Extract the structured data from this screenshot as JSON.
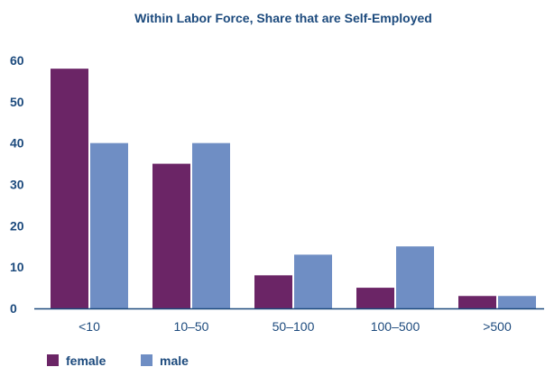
{
  "chart_data": {
    "type": "bar",
    "title": "Within Labor Force, Share that are Self-Employed",
    "xlabel": "",
    "ylabel": "",
    "categories": [
      "<10",
      "10–50",
      "50–100",
      "100–500",
      ">500"
    ],
    "series": [
      {
        "name": "female",
        "values": [
          58,
          35,
          8,
          5,
          3
        ],
        "color": "#6b2566"
      },
      {
        "name": "male",
        "values": [
          40,
          40,
          13,
          15,
          3
        ],
        "color": "#6f8ec4"
      }
    ],
    "ylim": [
      0,
      60
    ],
    "yticks": [
      "0",
      "10",
      "20",
      "30",
      "40",
      "50",
      "60"
    ],
    "grid": false,
    "legend_position": "bottom-left"
  },
  "colors": {
    "title": "#1c4a7d",
    "axis_text": "#1c4a7d",
    "axis_line": "#1c4a7d"
  }
}
